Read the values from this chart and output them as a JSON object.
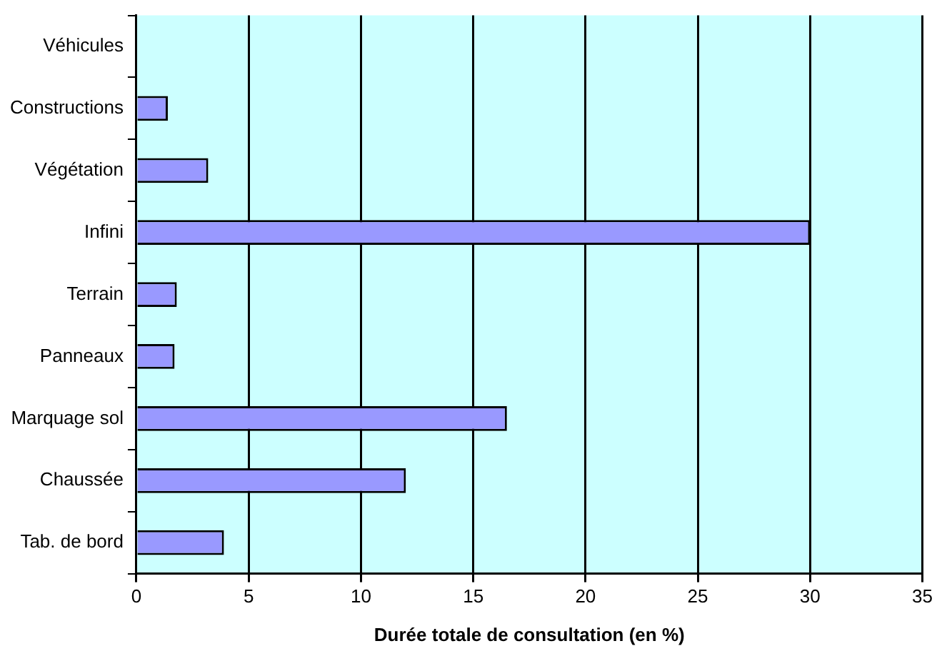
{
  "chart_data": {
    "type": "bar",
    "orientation": "horizontal",
    "xlabel": "Durée totale de consultation (en %)",
    "categories": [
      "Véhicules",
      "Constructions",
      "Végétation",
      "Infini",
      "Terrain",
      "Panneaux",
      "Marquage sol",
      "Chaussée",
      "Tab. de bord"
    ],
    "values": [
      0,
      1.4,
      3.2,
      30,
      1.8,
      1.7,
      16.5,
      12,
      3.9
    ],
    "color": "#9999ff",
    "xlim": [
      0,
      35
    ],
    "xticks": [
      0,
      5,
      10,
      15,
      20,
      25,
      30,
      35
    ],
    "grid": "x",
    "legend": false
  }
}
